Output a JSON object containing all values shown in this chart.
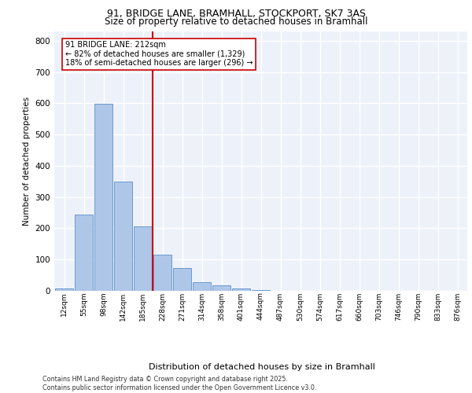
{
  "title_line1": "91, BRIDGE LANE, BRAMHALL, STOCKPORT, SK7 3AS",
  "title_line2": "Size of property relative to detached houses in Bramhall",
  "xlabel": "Distribution of detached houses by size in Bramhall",
  "ylabel": "Number of detached properties",
  "bar_labels": [
    "12sqm",
    "55sqm",
    "98sqm",
    "142sqm",
    "185sqm",
    "228sqm",
    "271sqm",
    "314sqm",
    "358sqm",
    "401sqm",
    "444sqm",
    "487sqm",
    "530sqm",
    "574sqm",
    "617sqm",
    "660sqm",
    "703sqm",
    "746sqm",
    "790sqm",
    "833sqm",
    "876sqm"
  ],
  "bar_values": [
    8,
    243,
    598,
    350,
    207,
    115,
    72,
    27,
    18,
    8,
    2,
    0,
    0,
    0,
    0,
    0,
    0,
    0,
    0,
    0,
    0
  ],
  "bar_color": "#aec6e8",
  "bar_edge_color": "#5b8fc9",
  "vline_color": "#cc0000",
  "annotation_text": "91 BRIDGE LANE: 212sqm\n← 82% of detached houses are smaller (1,329)\n18% of semi-detached houses are larger (296) →",
  "annotation_box_color": "#ffffff",
  "annotation_box_edge": "#cc0000",
  "ylim": [
    0,
    830
  ],
  "yticks": [
    0,
    100,
    200,
    300,
    400,
    500,
    600,
    700,
    800
  ],
  "background_color": "#edf2fa",
  "grid_color": "#ffffff",
  "footer_line1": "Contains HM Land Registry data © Crown copyright and database right 2025.",
  "footer_line2": "Contains public sector information licensed under the Open Government Licence v3.0."
}
